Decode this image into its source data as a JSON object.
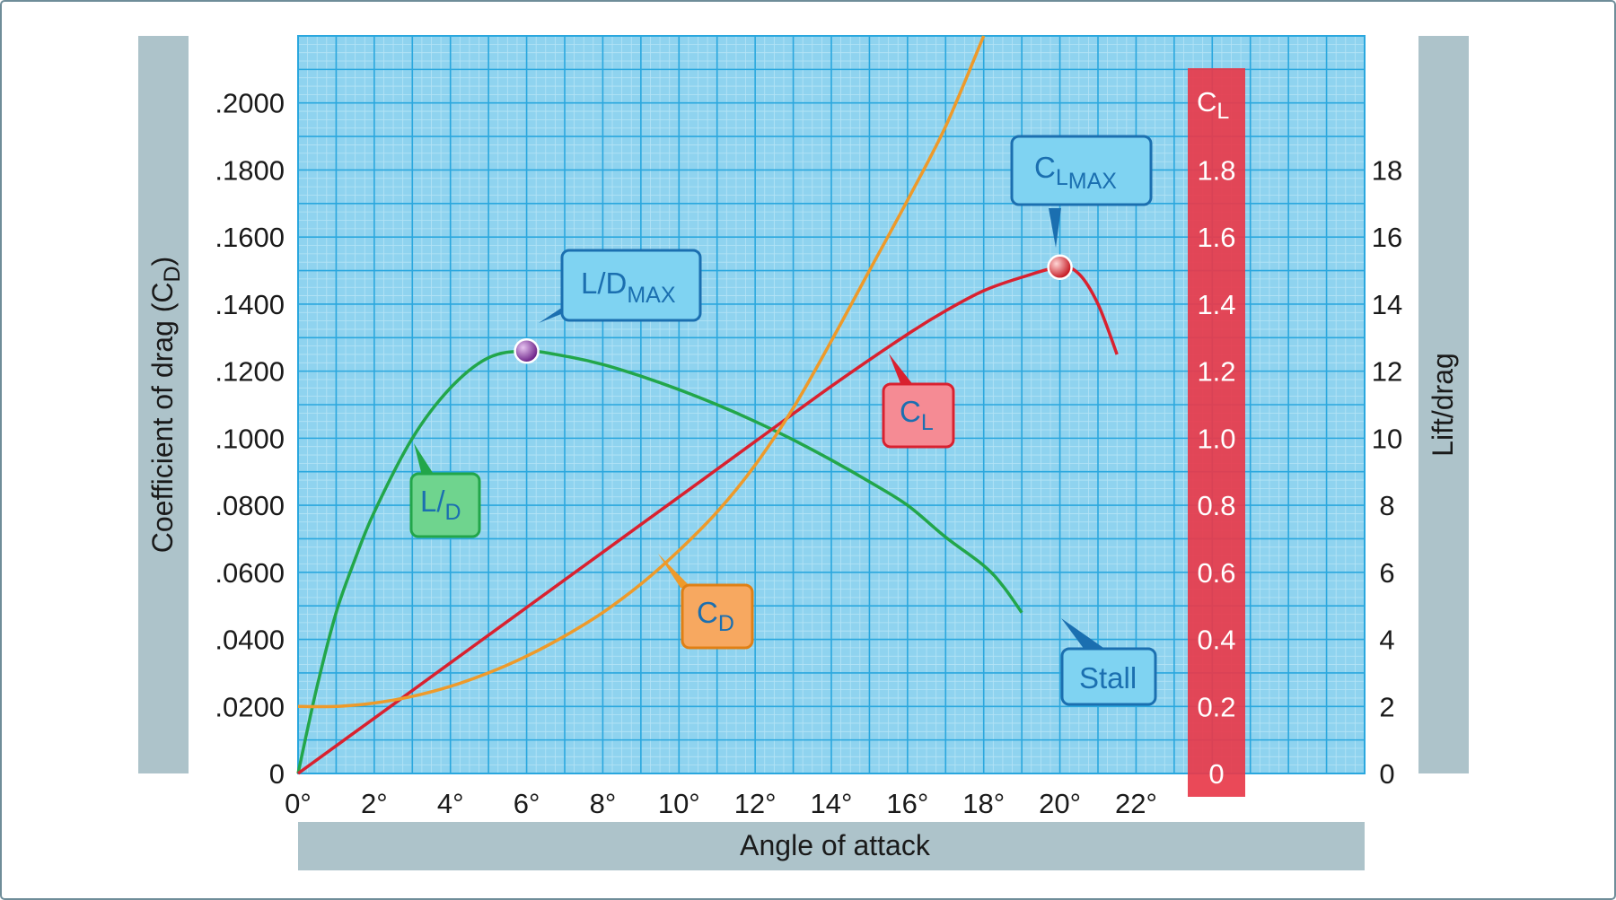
{
  "chart_data": {
    "type": "line",
    "x_axis": {
      "title": "Angle of attack",
      "range": [
        0,
        28
      ],
      "ticks": [
        0,
        2,
        4,
        6,
        8,
        10,
        12,
        14,
        16,
        18,
        20,
        22
      ],
      "tick_labels": [
        "0°",
        "2°",
        "4°",
        "6°",
        "8°",
        "10°",
        "12°",
        "14°",
        "16°",
        "18°",
        "20°",
        "22°"
      ]
    },
    "y_axis_left": {
      "title": "Coefficient of drag (C",
      "title_sub": "D",
      "title_end": ")",
      "range": [
        0,
        0.22
      ],
      "ticks": [
        0,
        0.02,
        0.04,
        0.06,
        0.08,
        0.1,
        0.12,
        0.14,
        0.16,
        0.18,
        0.2
      ],
      "tick_labels": [
        "0",
        ".0200",
        ".0400",
        ".0600",
        ".0800",
        ".1000",
        ".1200",
        ".1400",
        ".1600",
        ".1800",
        ".2000"
      ]
    },
    "y_axis_cl": {
      "title": "C",
      "title_sub": "L",
      "range": [
        0,
        2.2
      ],
      "ticks": [
        0,
        0.2,
        0.4,
        0.6,
        0.8,
        1.0,
        1.2,
        1.4,
        1.6,
        1.8
      ],
      "tick_labels": [
        "0",
        "0.2",
        "0.4",
        "0.6",
        "0.8",
        "1.0",
        "1.2",
        "1.4",
        "1.6",
        "1.8"
      ]
    },
    "y_axis_right": {
      "title": "Lift/drag",
      "range": [
        0,
        22
      ],
      "ticks": [
        0,
        2,
        4,
        6,
        8,
        10,
        12,
        14,
        16,
        18
      ],
      "tick_labels": [
        "0",
        "2",
        "4",
        "6",
        "8",
        "10",
        "12",
        "14",
        "16",
        "18"
      ]
    },
    "grid": true,
    "series": [
      {
        "name": "C",
        "name_sub": "L",
        "axis": "cl",
        "color": "#d9212f",
        "x": [
          0,
          2,
          4,
          6,
          8,
          10,
          12,
          14,
          16,
          17,
          18,
          19,
          20,
          20.5,
          21,
          21.5
        ],
        "y": [
          0,
          0.165,
          0.33,
          0.495,
          0.66,
          0.825,
          0.99,
          1.155,
          1.31,
          1.38,
          1.44,
          1.48,
          1.51,
          1.49,
          1.4,
          1.25
        ]
      },
      {
        "name": "C",
        "name_sub": "D",
        "axis": "cd",
        "color": "#ee9a2a",
        "x": [
          0,
          1,
          2,
          3,
          4,
          5,
          6,
          7,
          8,
          9,
          10,
          11,
          12,
          13,
          14,
          15,
          16,
          17,
          18
        ],
        "y": [
          0.02,
          0.02,
          0.021,
          0.023,
          0.026,
          0.03,
          0.035,
          0.041,
          0.048,
          0.0565,
          0.0665,
          0.078,
          0.092,
          0.109,
          0.129,
          0.15,
          0.171,
          0.193,
          0.22
        ]
      },
      {
        "name": "L/",
        "name_sub": "D",
        "axis": "ld",
        "color": "#22a64a",
        "x": [
          0,
          0.5,
          1,
          1.5,
          2,
          3,
          4,
          5,
          6,
          7,
          8,
          9,
          10,
          11,
          12,
          13,
          14,
          15,
          16,
          17,
          18,
          18.5,
          19
        ],
        "y": [
          0,
          2.6,
          4.8,
          6.4,
          7.8,
          10.0,
          11.5,
          12.4,
          12.6,
          12.45,
          12.2,
          11.85,
          11.45,
          11.0,
          10.5,
          9.95,
          9.35,
          8.7,
          8.0,
          7.05,
          6.2,
          5.6,
          4.8
        ]
      }
    ],
    "annotations": [
      {
        "id": "ld-max",
        "text": "L/D",
        "sub": "MAX",
        "color": "#7fd3f2",
        "point_x": 6,
        "point_ld": 12.6,
        "marker_color": "#8b3aa8"
      },
      {
        "id": "cl-max",
        "text": "C",
        "sub": "L",
        "sub2": "MAX",
        "color": "#7fd3f2",
        "point_x": 20,
        "point_cl": 1.51,
        "marker_color": "#d9212f"
      },
      {
        "id": "cl",
        "text": "C",
        "sub": "L",
        "color": "#f58b94"
      },
      {
        "id": "cd",
        "text": "C",
        "sub": "D",
        "color": "#f7a860"
      },
      {
        "id": "ld",
        "text": "L/",
        "sub": "D",
        "color": "#6fd48e"
      },
      {
        "id": "stall",
        "text": "Stall",
        "color": "#7fd3f2"
      }
    ]
  }
}
